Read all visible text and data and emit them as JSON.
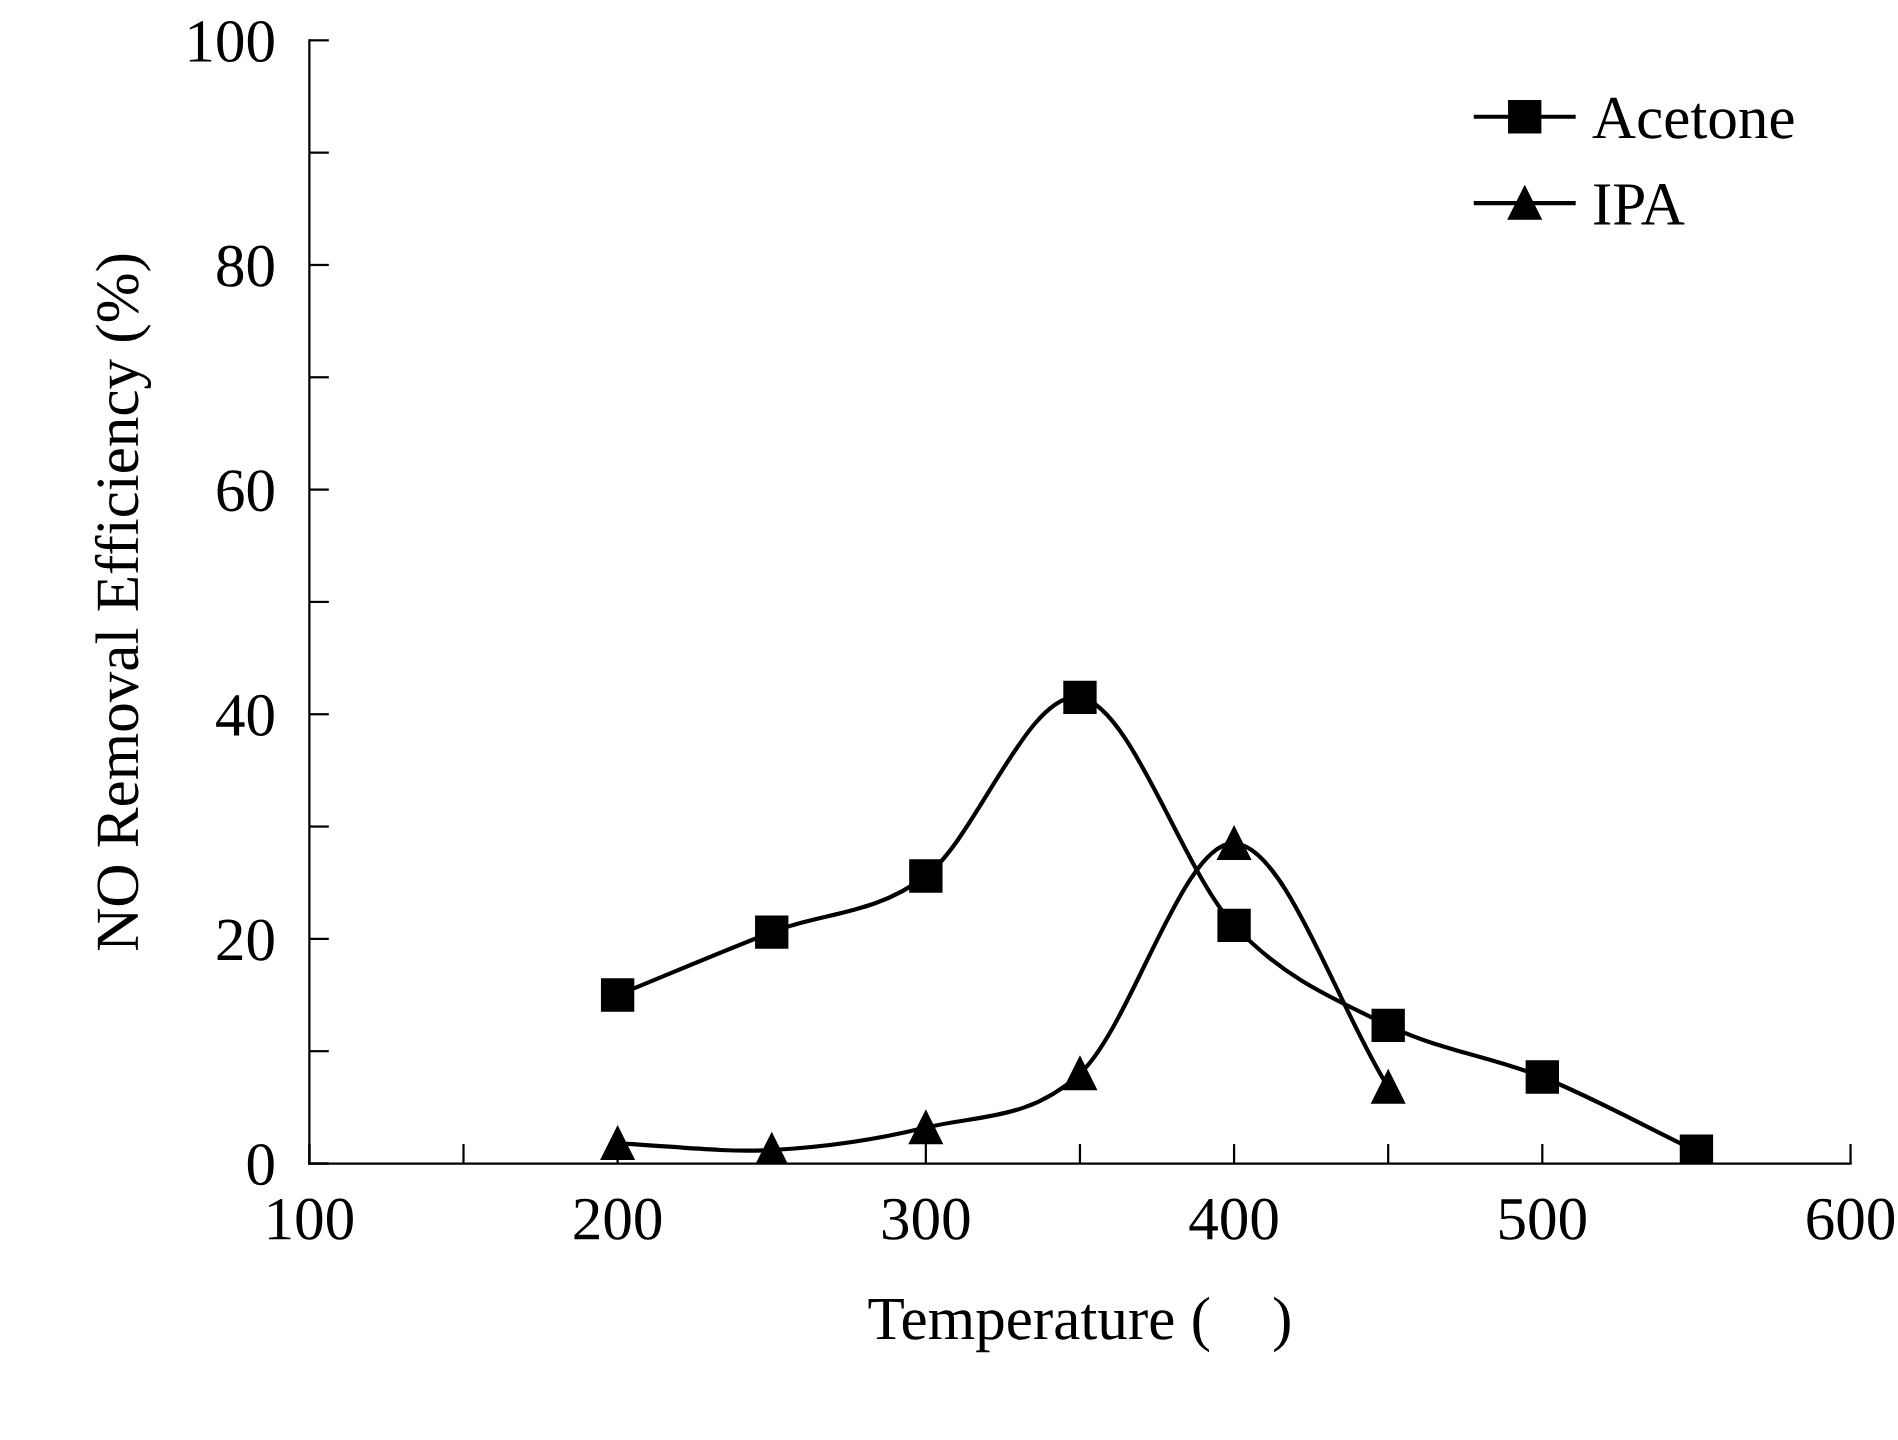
{
  "chart_data": {
    "type": "line",
    "xlabel": "Temperature (    )",
    "ylabel": "NO Removal Efficiency (%)",
    "xlim": [
      100,
      600
    ],
    "ylim": [
      0,
      100
    ],
    "xticks": [
      100,
      {
        "value": 150,
        "label": null
      },
      200,
      {
        "value": 250,
        "label": null
      },
      300,
      {
        "value": 350,
        "label": null
      },
      400,
      {
        "value": 450,
        "label": null
      },
      500,
      {
        "value": 550,
        "label": null
      },
      600
    ],
    "yticks": [
      0,
      {
        "value": 10,
        "label": null
      },
      20,
      {
        "value": 30,
        "label": null
      },
      40,
      {
        "value": 50,
        "label": null
      },
      60,
      {
        "value": 70,
        "label": null
      },
      80,
      {
        "value": 90,
        "label": null
      },
      100
    ],
    "legend": "top right",
    "grid": false,
    "line_style": "solid",
    "series": [
      {
        "name": "Acetone",
        "color": "#000000",
        "marker": "square",
        "x": [
          200,
          250,
          300,
          350,
          400,
          450,
          500,
          550
        ],
        "values": [
          15,
          20.6,
          25.6,
          41.5,
          21.2,
          12.3,
          7.7,
          1.1
        ]
      },
      {
        "name": "IPA",
        "color": "#000000",
        "marker": "triangle",
        "x": [
          200,
          250,
          300,
          350,
          400,
          450
        ],
        "values": [
          1.8,
          1.2,
          3.2,
          8.0,
          28.5,
          6.8
        ]
      }
    ]
  }
}
